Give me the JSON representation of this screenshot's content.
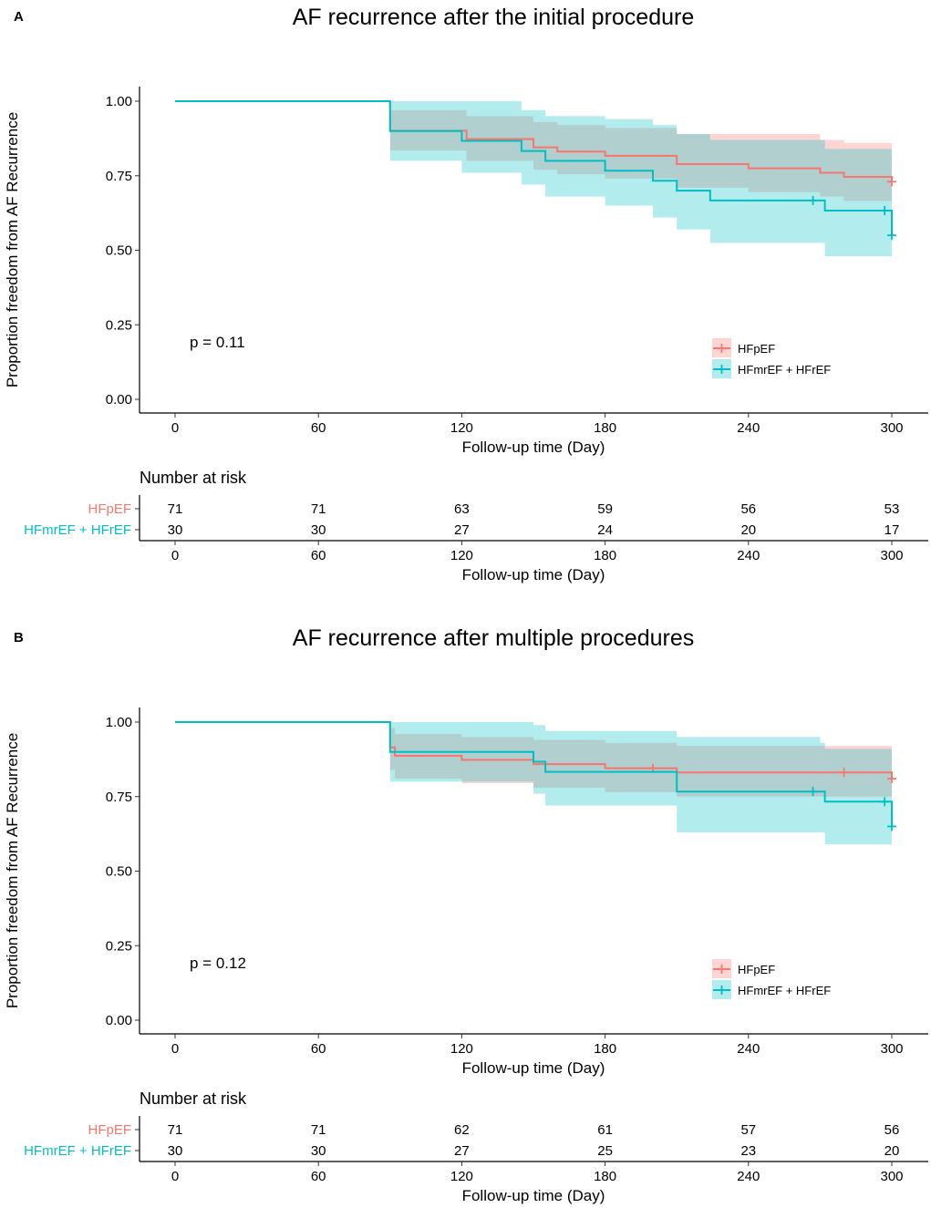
{
  "colors": {
    "hfpef": "#F8766D",
    "hfmref": "#00BFC4",
    "hfpef_band": "#F8766D",
    "hfmref_band": "#00BFC4"
  },
  "chart_data": [
    {
      "type": "line",
      "subtype": "kaplan-meier",
      "panel": "A",
      "title": "AF recurrence after the initial procedure",
      "xlabel": "Follow-up time (Day)",
      "ylabel": "Proportion freedom from AF Recurrence",
      "xlim": [
        0,
        300
      ],
      "ylim": [
        0,
        1
      ],
      "xticks": [
        0,
        60,
        120,
        180,
        240,
        300
      ],
      "xtick_labels": [
        "0",
        "60",
        "120",
        "180",
        "240",
        "300"
      ],
      "yticks": [
        0,
        0.25,
        0.5,
        0.75,
        1
      ],
      "ytick_labels": [
        "0.00",
        "0.25",
        "0.50",
        "0.75",
        "1.00"
      ],
      "pvalue": "p = 0.11",
      "legend": [
        "HFpEF",
        "HFmrEF + HFrEF"
      ],
      "series": [
        {
          "name": "HFpEF",
          "color": "#F8766D",
          "steps": [
            [
              0,
              1.0
            ],
            [
              90,
              0.901
            ],
            [
              122,
              0.873
            ],
            [
              150,
              0.845
            ],
            [
              160,
              0.831
            ],
            [
              180,
              0.817
            ],
            [
              210,
              0.789
            ],
            [
              240,
              0.775
            ],
            [
              270,
              0.76
            ],
            [
              280,
              0.746
            ],
            [
              300,
              0.73
            ]
          ],
          "lower": [
            [
              0,
              1.0
            ],
            [
              90,
              0.835
            ],
            [
              122,
              0.8
            ],
            [
              150,
              0.77
            ],
            [
              160,
              0.755
            ],
            [
              180,
              0.74
            ],
            [
              210,
              0.71
            ],
            [
              240,
              0.695
            ],
            [
              270,
              0.68
            ],
            [
              280,
              0.665
            ],
            [
              300,
              0.665
            ]
          ],
          "upper": [
            [
              0,
              1.0
            ],
            [
              90,
              0.97
            ],
            [
              122,
              0.95
            ],
            [
              150,
              0.93
            ],
            [
              160,
              0.92
            ],
            [
              180,
              0.91
            ],
            [
              210,
              0.89
            ],
            [
              240,
              0.89
            ],
            [
              270,
              0.87
            ],
            [
              280,
              0.86
            ],
            [
              300,
              0.86
            ]
          ],
          "censor": [
            [
              300,
              0.73
            ]
          ]
        },
        {
          "name": "HFmrEF + HFrEF",
          "color": "#00BFC4",
          "steps": [
            [
              0,
              1.0
            ],
            [
              90,
              0.9
            ],
            [
              120,
              0.867
            ],
            [
              145,
              0.833
            ],
            [
              155,
              0.8
            ],
            [
              180,
              0.767
            ],
            [
              200,
              0.733
            ],
            [
              210,
              0.7
            ],
            [
              224,
              0.667
            ],
            [
              270,
              0.667
            ],
            [
              272,
              0.633
            ],
            [
              298,
              0.633
            ],
            [
              300,
              0.55
            ]
          ],
          "lower": [
            [
              0,
              1.0
            ],
            [
              90,
              0.8
            ],
            [
              120,
              0.76
            ],
            [
              145,
              0.72
            ],
            [
              155,
              0.68
            ],
            [
              180,
              0.65
            ],
            [
              200,
              0.61
            ],
            [
              210,
              0.57
            ],
            [
              224,
              0.525
            ],
            [
              270,
              0.525
            ],
            [
              272,
              0.48
            ],
            [
              300,
              0.48
            ]
          ],
          "upper": [
            [
              0,
              1.0
            ],
            [
              90,
              1.0
            ],
            [
              120,
              1.0
            ],
            [
              145,
              0.97
            ],
            [
              155,
              0.95
            ],
            [
              180,
              0.94
            ],
            [
              200,
              0.92
            ],
            [
              210,
              0.89
            ],
            [
              224,
              0.87
            ],
            [
              270,
              0.87
            ],
            [
              272,
              0.84
            ],
            [
              300,
              0.84
            ]
          ],
          "censor": [
            [
              267,
              0.667
            ],
            [
              297,
              0.633
            ],
            [
              300,
              0.55
            ]
          ]
        }
      ],
      "risk_table": {
        "title": "Number at risk",
        "times": [
          0,
          60,
          120,
          180,
          240,
          300
        ],
        "rows": [
          {
            "name": "HFpEF",
            "values": [
              "71",
              "71",
              "63",
              "59",
              "56",
              "53"
            ]
          },
          {
            "name": "HFmrEF + HFrEF",
            "values": [
              "30",
              "30",
              "27",
              "24",
              "20",
              "17"
            ]
          }
        ],
        "xlabel": "Follow-up time (Day)"
      }
    },
    {
      "type": "line",
      "subtype": "kaplan-meier",
      "panel": "B",
      "title": "AF recurrence after multiple procedures",
      "xlabel": "Follow-up time (Day)",
      "ylabel": "Proportion freedom from AF Recurrence",
      "xlim": [
        0,
        300
      ],
      "ylim": [
        0,
        1
      ],
      "xticks": [
        0,
        60,
        120,
        180,
        240,
        300
      ],
      "xtick_labels": [
        "0",
        "60",
        "120",
        "180",
        "240",
        "300"
      ],
      "yticks": [
        0,
        0.25,
        0.5,
        0.75,
        1
      ],
      "ytick_labels": [
        "0.00",
        "0.25",
        "0.50",
        "0.75",
        "1.00"
      ],
      "pvalue": "p = 0.12",
      "legend": [
        "HFpEF",
        "HFmrEF + HFrEF"
      ],
      "series": [
        {
          "name": "HFpEF",
          "color": "#F8766D",
          "steps": [
            [
              0,
              1.0
            ],
            [
              90,
              0.915
            ],
            [
              92,
              0.887
            ],
            [
              120,
              0.873
            ],
            [
              150,
              0.859
            ],
            [
              180,
              0.845
            ],
            [
              210,
              0.831
            ],
            [
              300,
              0.81
            ]
          ],
          "lower": [
            [
              0,
              1.0
            ],
            [
              90,
              0.84
            ],
            [
              92,
              0.81
            ],
            [
              120,
              0.795
            ],
            [
              150,
              0.78
            ],
            [
              180,
              0.765
            ],
            [
              210,
              0.75
            ],
            [
              300,
              0.75
            ]
          ],
          "upper": [
            [
              0,
              1.0
            ],
            [
              90,
              0.98
            ],
            [
              92,
              0.96
            ],
            [
              120,
              0.95
            ],
            [
              150,
              0.94
            ],
            [
              180,
              0.93
            ],
            [
              210,
              0.92
            ],
            [
              300,
              0.92
            ]
          ],
          "censor": [
            [
              200,
              0.845
            ],
            [
              280,
              0.831
            ],
            [
              300,
              0.81
            ]
          ]
        },
        {
          "name": "HFmrEF + HFrEF",
          "color": "#00BFC4",
          "steps": [
            [
              0,
              1.0
            ],
            [
              90,
              0.9
            ],
            [
              150,
              0.867
            ],
            [
              155,
              0.833
            ],
            [
              210,
              0.767
            ],
            [
              270,
              0.767
            ],
            [
              272,
              0.733
            ],
            [
              298,
              0.733
            ],
            [
              300,
              0.65
            ]
          ],
          "lower": [
            [
              0,
              1.0
            ],
            [
              90,
              0.8
            ],
            [
              150,
              0.76
            ],
            [
              155,
              0.72
            ],
            [
              210,
              0.63
            ],
            [
              270,
              0.63
            ],
            [
              272,
              0.59
            ],
            [
              300,
              0.59
            ]
          ],
          "upper": [
            [
              0,
              1.0
            ],
            [
              90,
              1.0
            ],
            [
              150,
              0.99
            ],
            [
              155,
              0.97
            ],
            [
              210,
              0.95
            ],
            [
              270,
              0.93
            ],
            [
              272,
              0.91
            ],
            [
              300,
              0.91
            ]
          ],
          "censor": [
            [
              267,
              0.767
            ],
            [
              297,
              0.733
            ],
            [
              300,
              0.65
            ]
          ]
        }
      ],
      "risk_table": {
        "title": "Number at risk",
        "times": [
          0,
          60,
          120,
          180,
          240,
          300
        ],
        "rows": [
          {
            "name": "HFpEF",
            "values": [
              "71",
              "71",
              "62",
              "61",
              "57",
              "56"
            ]
          },
          {
            "name": "HFmrEF + HFrEF",
            "values": [
              "30",
              "30",
              "27",
              "25",
              "23",
              "20"
            ]
          }
        ],
        "xlabel": "Follow-up time (Day)"
      }
    }
  ]
}
